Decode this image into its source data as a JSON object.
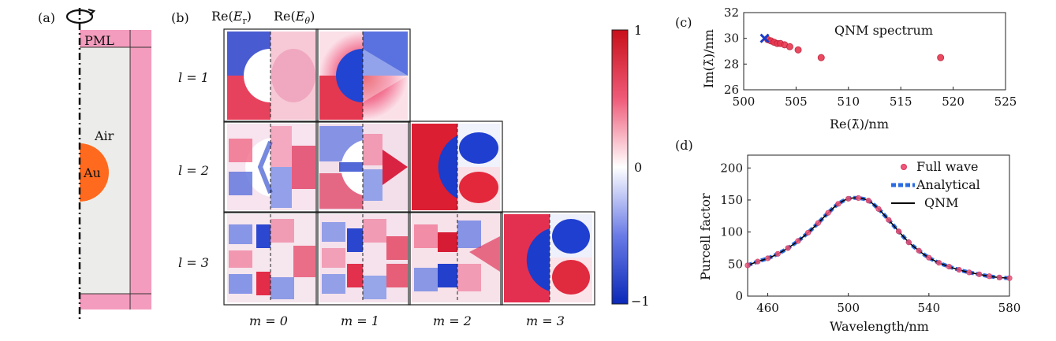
{
  "panel_a": {
    "tag": "(a)",
    "pml_label": "PML",
    "air_label": "Air",
    "au_label": "Au",
    "colors": {
      "air": "#ecedea",
      "pml": "#f49cbd",
      "gold": "#ff6a1f"
    }
  },
  "panel_b": {
    "tag": "(b)",
    "col_header_1": "Re(E_r)",
    "col_header_2": "Re(E_θ)",
    "row_labels": [
      "l = 1",
      "l = 2",
      "l = 3"
    ],
    "col_labels": [
      "m = 0",
      "m = 1",
      "m = 2",
      "m = 3"
    ],
    "colorbar": {
      "max": "1",
      "mid": "0",
      "min": "−1",
      "colors": {
        "positive": "#d4141a",
        "zero": "#ffffff",
        "negative": "#1430c8"
      }
    }
  },
  "panel_c": {
    "tag": "(c)",
    "title": "QNM spectrum",
    "xlabel": "Re(λ̃)/nm",
    "ylabel": "Im(λ̃)/nm",
    "chart_data": {
      "type": "scatter",
      "xlim": [
        500,
        525
      ],
      "ylim": [
        26,
        32
      ],
      "xticks": [
        500,
        505,
        510,
        515,
        520,
        525
      ],
      "yticks": [
        26,
        28,
        30,
        32
      ],
      "series": [
        {
          "marker": "circle",
          "color": "#e8384f",
          "x": [
            502.3,
            502.6,
            502.9,
            503.2,
            503.5,
            503.9,
            504.4,
            505.2,
            507.4,
            518.8
          ],
          "y": [
            29.9,
            29.8,
            29.7,
            29.6,
            29.6,
            29.5,
            29.35,
            29.1,
            28.5,
            28.5
          ]
        },
        {
          "marker": "cross",
          "color": "#1a3cc8",
          "x": [
            502.0
          ],
          "y": [
            30.0
          ]
        }
      ]
    }
  },
  "panel_d": {
    "tag": "(d)",
    "xlabel": "Wavelength/nm",
    "ylabel": "Purcell factor",
    "legend": [
      "Full wave",
      "Analytical",
      "QNM"
    ],
    "chart_data": {
      "type": "line",
      "xlim": [
        450,
        580
      ],
      "ylim": [
        0,
        220
      ],
      "xticks": [
        460,
        500,
        540,
        580
      ],
      "yticks": [
        0,
        50,
        100,
        150,
        200
      ],
      "peak_wavelength": 507,
      "peak_value": 153,
      "series": [
        {
          "name": "Full wave",
          "style": "markers",
          "color": "#f0577a",
          "x": [
            450,
            455,
            460,
            465,
            470,
            475,
            480,
            485,
            490,
            495,
            500,
            505,
            510,
            515,
            520,
            525,
            530,
            535,
            540,
            545,
            550,
            555,
            560,
            565,
            570,
            575,
            580
          ],
          "y": [
            48,
            54,
            59,
            66,
            75,
            86,
            99,
            114,
            130,
            144,
            152,
            153,
            149,
            136,
            119,
            101,
            84,
            71,
            60,
            52,
            46,
            41,
            37,
            34,
            31,
            29,
            28
          ]
        },
        {
          "name": "Analytical",
          "style": "dashed",
          "color": "#2a6be0",
          "x": [
            450,
            455,
            460,
            465,
            470,
            475,
            480,
            485,
            490,
            495,
            500,
            505,
            510,
            515,
            520,
            525,
            530,
            535,
            540,
            545,
            550,
            555,
            560,
            565,
            570,
            575,
            580
          ],
          "y": [
            48,
            54,
            59,
            66,
            75,
            86,
            99,
            114,
            130,
            144,
            152,
            153,
            149,
            136,
            119,
            101,
            84,
            71,
            60,
            52,
            46,
            41,
            37,
            34,
            31,
            29,
            28
          ]
        },
        {
          "name": "QNM",
          "style": "solid",
          "color": "#000000",
          "x": [
            450,
            455,
            460,
            465,
            470,
            475,
            480,
            485,
            490,
            495,
            500,
            505,
            510,
            515,
            520,
            525,
            530,
            535,
            540,
            545,
            550,
            555,
            560,
            565,
            570,
            575,
            580
          ],
          "y": [
            48,
            54,
            59,
            66,
            75,
            86,
            99,
            114,
            130,
            144,
            152,
            153,
            149,
            136,
            119,
            101,
            84,
            71,
            60,
            52,
            46,
            41,
            37,
            34,
            31,
            29,
            28
          ]
        }
      ]
    }
  }
}
